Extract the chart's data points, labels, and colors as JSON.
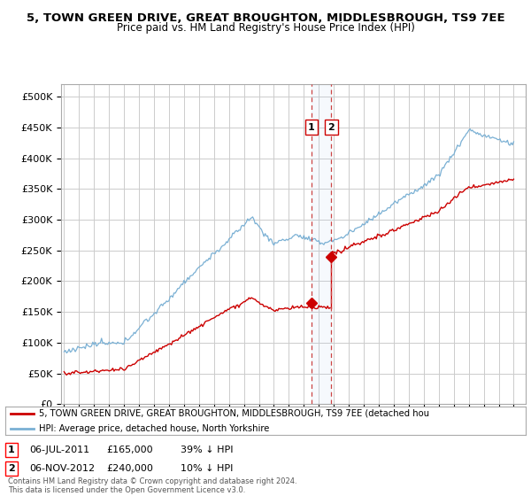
{
  "title_line1": "5, TOWN GREEN DRIVE, GREAT BROUGHTON, MIDDLESBROUGH, TS9 7EE",
  "title_line2": "Price paid vs. HM Land Registry's House Price Index (HPI)",
  "ylim": [
    0,
    520000
  ],
  "yticks": [
    0,
    50000,
    100000,
    150000,
    200000,
    250000,
    300000,
    350000,
    400000,
    450000,
    500000
  ],
  "ytick_labels": [
    "£0",
    "£50K",
    "£100K",
    "£150K",
    "£200K",
    "£250K",
    "£300K",
    "£350K",
    "£400K",
    "£450K",
    "£500K"
  ],
  "hpi_color": "#7ab0d4",
  "price_color": "#cc0000",
  "sale1_date": 2011.5,
  "sale1_price": 165000,
  "sale2_date": 2012.83,
  "sale2_price": 240000,
  "legend_line1": "5, TOWN GREEN DRIVE, GREAT BROUGHTON, MIDDLESBROUGH, TS9 7EE (detached hou",
  "legend_line2": "HPI: Average price, detached house, North Yorkshire",
  "footer": "Contains HM Land Registry data © Crown copyright and database right 2024.\nThis data is licensed under the Open Government Licence v3.0.",
  "bg_color": "#ffffff",
  "grid_color": "#cccccc"
}
